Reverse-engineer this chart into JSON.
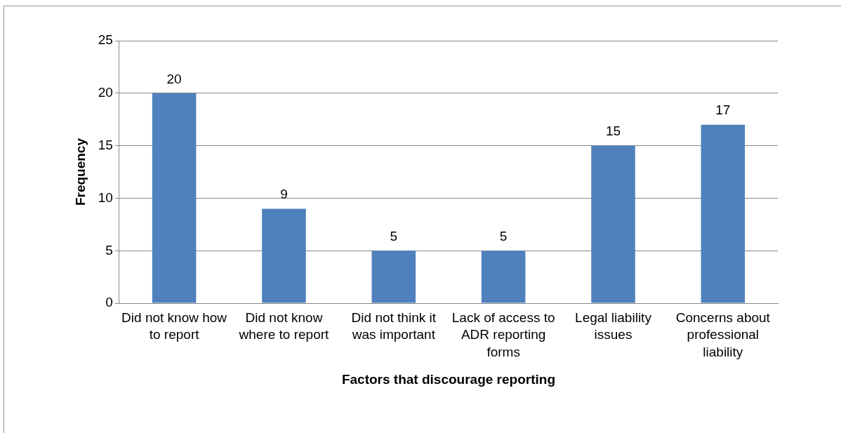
{
  "chart_data": {
    "type": "bar",
    "xlabel": "Factors that discourage reporting",
    "ylabel": "Frequency",
    "categories": [
      "Did not know how to report",
      "Did not know where to report",
      "Did not think it was important",
      "Lack of access to ADR reporting forms",
      "Legal liability issues",
      "Concerns about professional liability"
    ],
    "values": [
      20,
      9,
      5,
      5,
      15,
      17
    ],
    "color": "#4f81bd",
    "ylim": [
      0,
      25
    ],
    "yticks": [
      0,
      5,
      10,
      15,
      20,
      25
    ],
    "grid": "y",
    "data_labels": true,
    "legend": false
  }
}
